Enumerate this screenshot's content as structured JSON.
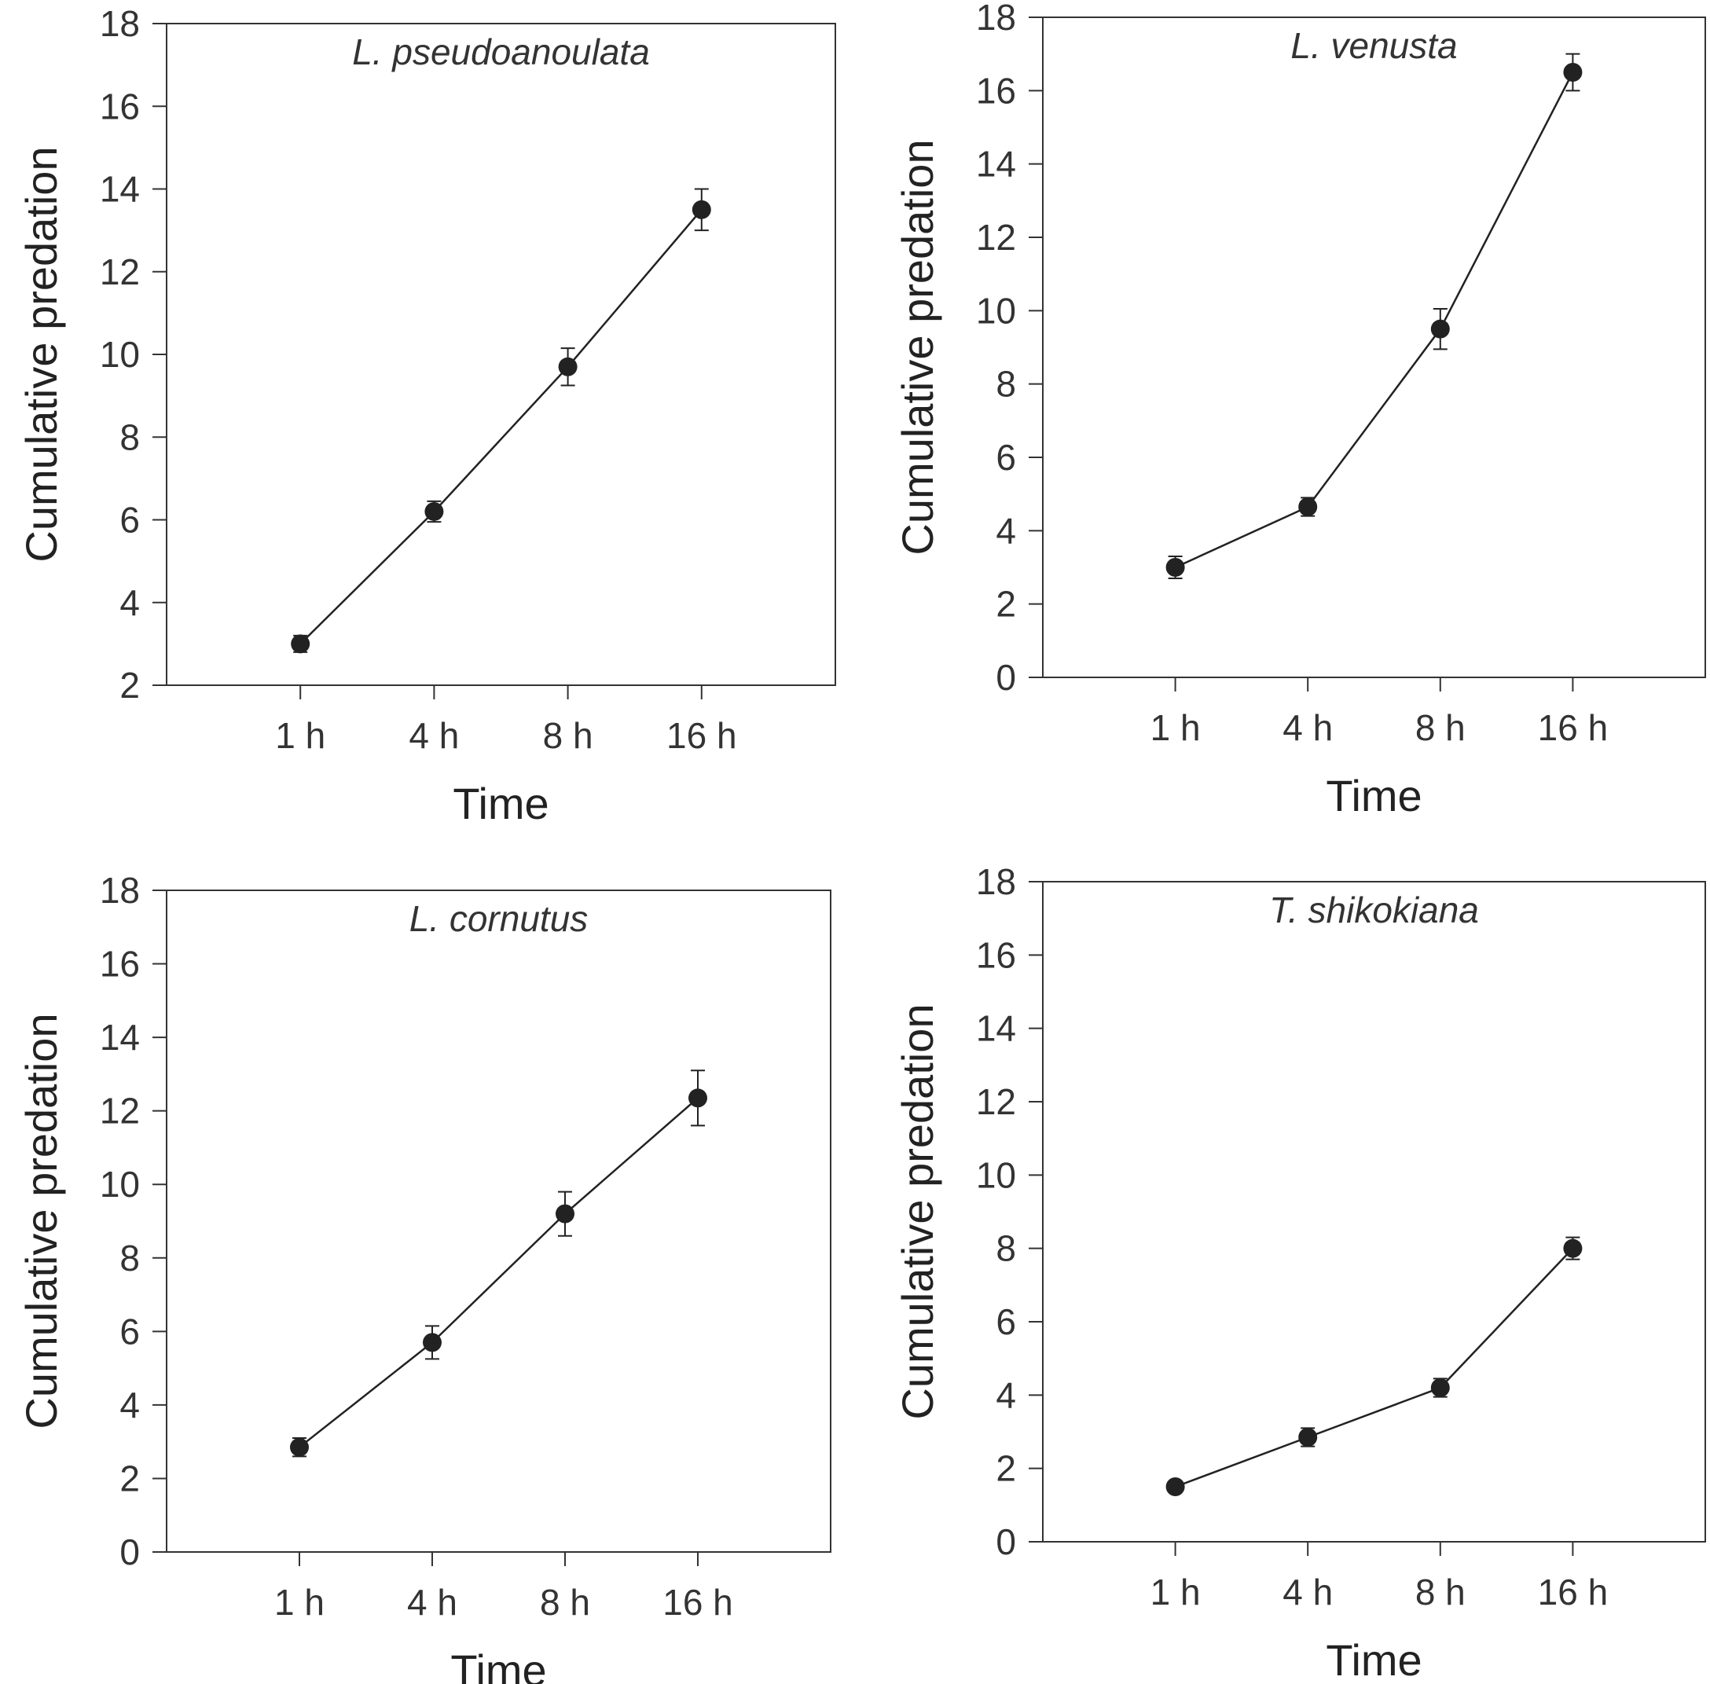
{
  "chart_data": [
    {
      "type": "line",
      "title": "L. pseudoanoulata",
      "xlabel": "Time",
      "ylabel": "Cumulative predation",
      "categories": [
        "1 h",
        "4 h",
        "8 h",
        "16 h"
      ],
      "values": [
        3.0,
        6.2,
        9.7,
        13.5
      ],
      "errors": [
        0.2,
        0.25,
        0.45,
        0.5
      ],
      "ylim": [
        2,
        18
      ],
      "yticks": [
        "2",
        "4",
        "6",
        "8",
        "10",
        "12",
        "14",
        "16",
        "18"
      ],
      "grid": false,
      "color": "#222222"
    },
    {
      "type": "line",
      "title": "L. venusta",
      "xlabel": "Time",
      "ylabel": "Cumulative predation",
      "categories": [
        "1 h",
        "4 h",
        "8 h",
        "16 h"
      ],
      "values": [
        3.0,
        4.65,
        9.5,
        16.5
      ],
      "errors": [
        0.3,
        0.25,
        0.55,
        0.5
      ],
      "ylim": [
        0,
        18
      ],
      "yticks": [
        "0",
        "2",
        "4",
        "6",
        "8",
        "10",
        "12",
        "14",
        "16",
        "18"
      ],
      "grid": false,
      "color": "#222222"
    },
    {
      "type": "line",
      "title": "L. cornutus",
      "xlabel": "Time",
      "ylabel": "Cumulative predation",
      "categories": [
        "1 h",
        "4 h",
        "8 h",
        "16 h"
      ],
      "values": [
        2.85,
        5.7,
        9.2,
        12.35
      ],
      "errors": [
        0.25,
        0.45,
        0.6,
        0.75
      ],
      "ylim": [
        0,
        18
      ],
      "yticks": [
        "0",
        "2",
        "4",
        "6",
        "8",
        "10",
        "12",
        "14",
        "16",
        "18"
      ],
      "grid": false,
      "color": "#222222"
    },
    {
      "type": "line",
      "title": "T. shikokiana",
      "xlabel": "Time",
      "ylabel": "Cumulative predation",
      "categories": [
        "1 h",
        "4 h",
        "8 h",
        "16 h"
      ],
      "values": [
        1.5,
        2.85,
        4.2,
        8.0
      ],
      "errors": [
        0.15,
        0.25,
        0.25,
        0.3
      ],
      "ylim": [
        0,
        18
      ],
      "yticks": [
        "0",
        "2",
        "4",
        "6",
        "8",
        "10",
        "12",
        "14",
        "16",
        "18"
      ],
      "grid": false,
      "color": "#222222"
    }
  ]
}
